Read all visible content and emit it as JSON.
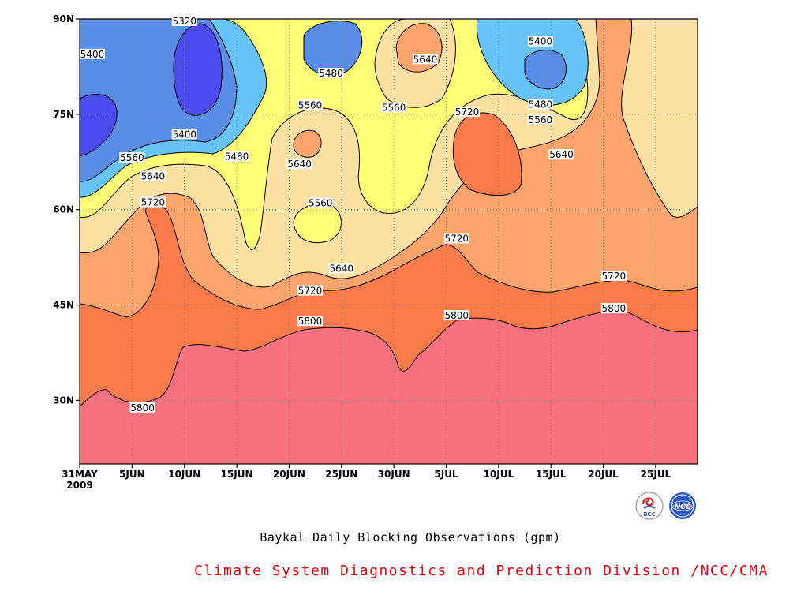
{
  "chart_data": {
    "type": "heatmap",
    "title": "Baykal Daily Blocking Observations (gpm)",
    "x_axis": {
      "start": "2009-05-31",
      "end": "2009-07-29",
      "ticks": [
        {
          "date": "2009-05-31",
          "label": "31MAY",
          "sublabel": "2009"
        },
        {
          "date": "2009-06-05",
          "label": "5JUN"
        },
        {
          "date": "2009-06-10",
          "label": "10JUN"
        },
        {
          "date": "2009-06-15",
          "label": "15JUN"
        },
        {
          "date": "2009-06-20",
          "label": "20JUN"
        },
        {
          "date": "2009-06-25",
          "label": "25JUN"
        },
        {
          "date": "2009-06-30",
          "label": "30JUN"
        },
        {
          "date": "2009-07-05",
          "label": "5JUL"
        },
        {
          "date": "2009-07-10",
          "label": "10JUL"
        },
        {
          "date": "2009-07-15",
          "label": "15JUL"
        },
        {
          "date": "2009-07-20",
          "label": "20JUL"
        },
        {
          "date": "2009-07-25",
          "label": "25JUL"
        }
      ]
    },
    "y_axis": {
      "range": [
        20,
        90
      ],
      "ticks": [
        {
          "value": 30,
          "label": "30N"
        },
        {
          "value": 45,
          "label": "45N"
        },
        {
          "value": 60,
          "label": "60N"
        },
        {
          "value": 75,
          "label": "75N"
        },
        {
          "value": 90,
          "label": "90N"
        }
      ]
    },
    "grid": "dotted",
    "contour_levels": [
      5320,
      5400,
      5480,
      5560,
      5640,
      5720,
      5800
    ],
    "fill_colors": {
      "below_5320": "#4b4bf0",
      "5320_5400": "#5a8de6",
      "5400_5480": "#66c4fa",
      "5480_5560": "#ffff77",
      "5560_5640": "#fde1a3",
      "5640_5720": "#fca46c",
      "5720_5800": "#fa7a4a",
      "above_5800": "#f7707d"
    },
    "contour_labels": [
      {
        "text": "5320",
        "date": "2009-06-10",
        "lat": 90
      },
      {
        "text": "5400",
        "date": "2009-05-31",
        "lat": 84.5
      },
      {
        "text": "5480",
        "date": "2009-06-24",
        "lat": 81.5
      },
      {
        "text": "5640",
        "date": "2009-07-03",
        "lat": 83.7
      },
      {
        "text": "5400",
        "date": "2009-07-14",
        "lat": 86.5
      },
      {
        "text": "5560",
        "date": "2009-06-22",
        "lat": 76.5
      },
      {
        "text": "5560",
        "date": "2009-06-30",
        "lat": 76.1
      },
      {
        "text": "5720",
        "date": "2009-07-07",
        "lat": 75.4
      },
      {
        "text": "5480",
        "date": "2009-07-14",
        "lat": 76.6
      },
      {
        "text": "5560",
        "date": "2009-07-14",
        "lat": 74.2
      },
      {
        "text": "5400",
        "date": "2009-06-10",
        "lat": 71.9
      },
      {
        "text": "5640",
        "date": "2009-06-21",
        "lat": 67.2
      },
      {
        "text": "5480",
        "date": "2009-06-15",
        "lat": 68.4
      },
      {
        "text": "5560",
        "date": "2009-06-05",
        "lat": 68.2
      },
      {
        "text": "5640",
        "date": "2009-06-07",
        "lat": 65.3
      },
      {
        "text": "5640",
        "date": "2009-07-16",
        "lat": 68.7
      },
      {
        "text": "5720",
        "date": "2009-06-07",
        "lat": 61.2
      },
      {
        "text": "5560",
        "date": "2009-06-23",
        "lat": 61.1
      },
      {
        "text": "5720",
        "date": "2009-07-06",
        "lat": 55.5
      },
      {
        "text": "5640",
        "date": "2009-06-25",
        "lat": 50.8
      },
      {
        "text": "5720",
        "date": "2009-06-22",
        "lat": 47.3
      },
      {
        "text": "5720",
        "date": "2009-07-21",
        "lat": 49.6
      },
      {
        "text": "5800",
        "date": "2009-06-22",
        "lat": 42.5
      },
      {
        "text": "5800",
        "date": "2009-07-06",
        "lat": 43.4
      },
      {
        "text": "5800",
        "date": "2009-07-21",
        "lat": 44.5
      },
      {
        "text": "5800",
        "date": "2009-06-06",
        "lat": 28.9
      }
    ]
  },
  "footer": {
    "title": "Baykal Daily Blocking Observations (gpm)",
    "credit": "Climate System Diagnostics and Prediction Division /NCC/CMA",
    "logo_left_text": "BCC",
    "logo_right_text": "NCC",
    "logo_left_icon": "bcc-logo-icon",
    "logo_right_icon": "ncc-logo-icon"
  }
}
